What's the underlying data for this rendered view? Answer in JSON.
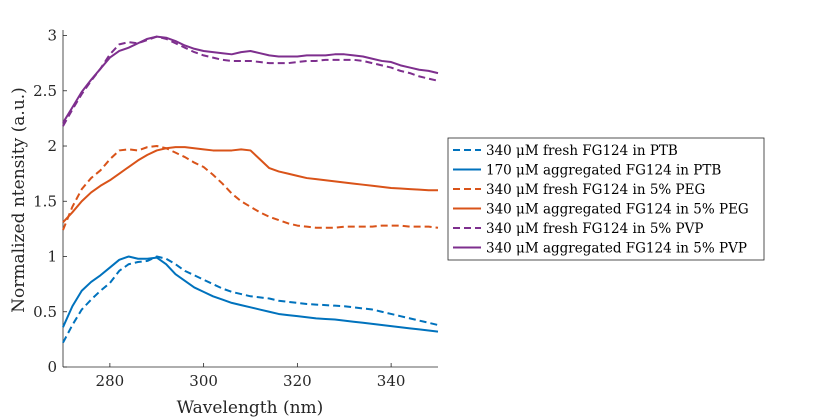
{
  "chart_data": {
    "type": "line",
    "xlabel": "Wavelength (nm)",
    "ylabel": "Normalized ntensity (a.u.)",
    "xlim": [
      270,
      350
    ],
    "ylim": [
      0,
      3.05
    ],
    "xticks": [
      280,
      300,
      320,
      340
    ],
    "yticks": [
      0,
      0.5,
      1,
      1.5,
      2,
      2.5,
      3
    ],
    "grid": false,
    "legend_position": "right",
    "series": [
      {
        "name": "340 μM fresh FG124 in PTB",
        "color": "#0072BD",
        "dash": true,
        "x": [
          270,
          272,
          274,
          276,
          278,
          280,
          282,
          284,
          286,
          288,
          290,
          292,
          294,
          296,
          298,
          300,
          302,
          304,
          306,
          308,
          310,
          312,
          314,
          316,
          318,
          320,
          322,
          324,
          326,
          328,
          330,
          332,
          334,
          336,
          338,
          340,
          342,
          344,
          346,
          348,
          350
        ],
        "y": [
          0.22,
          0.38,
          0.52,
          0.61,
          0.69,
          0.76,
          0.87,
          0.93,
          0.95,
          0.96,
          1.0,
          0.98,
          0.93,
          0.87,
          0.83,
          0.79,
          0.75,
          0.71,
          0.68,
          0.66,
          0.64,
          0.63,
          0.62,
          0.6,
          0.59,
          0.58,
          0.57,
          0.565,
          0.56,
          0.555,
          0.55,
          0.54,
          0.53,
          0.52,
          0.5,
          0.48,
          0.46,
          0.44,
          0.42,
          0.4,
          0.38
        ]
      },
      {
        "name": "170 μM aggregated FG124 in PTB",
        "color": "#0072BD",
        "dash": false,
        "x": [
          270,
          272,
          274,
          276,
          278,
          280,
          282,
          284,
          286,
          288,
          290,
          292,
          294,
          296,
          298,
          300,
          302,
          304,
          306,
          308,
          310,
          312,
          314,
          316,
          318,
          320,
          322,
          324,
          326,
          328,
          330,
          332,
          334,
          336,
          338,
          340,
          342,
          344,
          346,
          348,
          350
        ],
        "y": [
          0.36,
          0.55,
          0.69,
          0.77,
          0.83,
          0.9,
          0.97,
          1.0,
          0.98,
          0.98,
          0.99,
          0.93,
          0.84,
          0.78,
          0.72,
          0.68,
          0.64,
          0.61,
          0.58,
          0.56,
          0.54,
          0.52,
          0.5,
          0.48,
          0.47,
          0.46,
          0.45,
          0.44,
          0.435,
          0.43,
          0.42,
          0.41,
          0.4,
          0.39,
          0.38,
          0.37,
          0.36,
          0.35,
          0.34,
          0.33,
          0.32
        ]
      },
      {
        "name": "340 μM fresh FG124 in 5% PEG",
        "color": "#D95319",
        "dash": true,
        "x": [
          270,
          272,
          274,
          276,
          278,
          280,
          282,
          284,
          286,
          288,
          290,
          292,
          294,
          296,
          298,
          300,
          302,
          304,
          306,
          308,
          310,
          312,
          314,
          316,
          318,
          320,
          322,
          324,
          326,
          328,
          330,
          332,
          334,
          336,
          338,
          340,
          342,
          344,
          346,
          348,
          350
        ],
        "y": [
          1.24,
          1.45,
          1.61,
          1.71,
          1.78,
          1.88,
          1.96,
          1.97,
          1.96,
          1.99,
          2.0,
          1.98,
          1.94,
          1.9,
          1.85,
          1.81,
          1.74,
          1.66,
          1.57,
          1.5,
          1.45,
          1.4,
          1.36,
          1.33,
          1.3,
          1.28,
          1.27,
          1.26,
          1.26,
          1.26,
          1.27,
          1.27,
          1.27,
          1.27,
          1.28,
          1.28,
          1.28,
          1.27,
          1.27,
          1.27,
          1.26
        ]
      },
      {
        "name": "340 μM aggregated FG124 in 5% PEG",
        "color": "#D95319",
        "dash": false,
        "x": [
          270,
          272,
          274,
          276,
          278,
          280,
          282,
          284,
          286,
          288,
          290,
          292,
          294,
          296,
          298,
          300,
          302,
          304,
          306,
          308,
          310,
          312,
          314,
          316,
          318,
          320,
          322,
          324,
          326,
          328,
          330,
          332,
          334,
          336,
          338,
          340,
          342,
          344,
          346,
          348,
          350
        ],
        "y": [
          1.31,
          1.4,
          1.5,
          1.58,
          1.64,
          1.69,
          1.75,
          1.81,
          1.87,
          1.92,
          1.96,
          1.98,
          1.99,
          1.99,
          1.98,
          1.97,
          1.96,
          1.96,
          1.96,
          1.97,
          1.96,
          1.88,
          1.8,
          1.77,
          1.75,
          1.73,
          1.71,
          1.7,
          1.69,
          1.68,
          1.67,
          1.66,
          1.65,
          1.64,
          1.63,
          1.62,
          1.615,
          1.61,
          1.605,
          1.6,
          1.6
        ]
      },
      {
        "name": "340 μM fresh FG124 in 5% PVP",
        "color": "#7E2F8E",
        "dash": true,
        "x": [
          270,
          272,
          274,
          276,
          278,
          280,
          282,
          284,
          286,
          288,
          290,
          292,
          294,
          296,
          298,
          300,
          302,
          304,
          306,
          308,
          310,
          312,
          314,
          316,
          318,
          320,
          322,
          324,
          326,
          328,
          330,
          332,
          334,
          336,
          338,
          340,
          342,
          344,
          346,
          348,
          350
        ],
        "y": [
          2.18,
          2.33,
          2.47,
          2.59,
          2.7,
          2.83,
          2.92,
          2.94,
          2.93,
          2.96,
          2.99,
          2.97,
          2.93,
          2.89,
          2.85,
          2.82,
          2.8,
          2.78,
          2.77,
          2.77,
          2.77,
          2.76,
          2.75,
          2.75,
          2.75,
          2.76,
          2.77,
          2.77,
          2.78,
          2.78,
          2.78,
          2.78,
          2.77,
          2.75,
          2.73,
          2.71,
          2.68,
          2.66,
          2.63,
          2.61,
          2.59
        ]
      },
      {
        "name": "340 μM aggregated FG124 in 5% PVP",
        "color": "#7E2F8E",
        "dash": false,
        "x": [
          270,
          272,
          274,
          276,
          278,
          280,
          282,
          284,
          286,
          288,
          290,
          292,
          294,
          296,
          298,
          300,
          302,
          304,
          306,
          308,
          310,
          312,
          314,
          316,
          318,
          320,
          322,
          324,
          326,
          328,
          330,
          332,
          334,
          336,
          338,
          340,
          342,
          344,
          346,
          348,
          350
        ],
        "y": [
          2.21,
          2.35,
          2.49,
          2.6,
          2.7,
          2.8,
          2.86,
          2.89,
          2.93,
          2.97,
          2.99,
          2.98,
          2.95,
          2.91,
          2.88,
          2.86,
          2.85,
          2.84,
          2.83,
          2.85,
          2.86,
          2.84,
          2.82,
          2.81,
          2.81,
          2.81,
          2.82,
          2.82,
          2.82,
          2.83,
          2.83,
          2.82,
          2.81,
          2.79,
          2.77,
          2.76,
          2.73,
          2.71,
          2.69,
          2.68,
          2.66
        ]
      }
    ]
  }
}
